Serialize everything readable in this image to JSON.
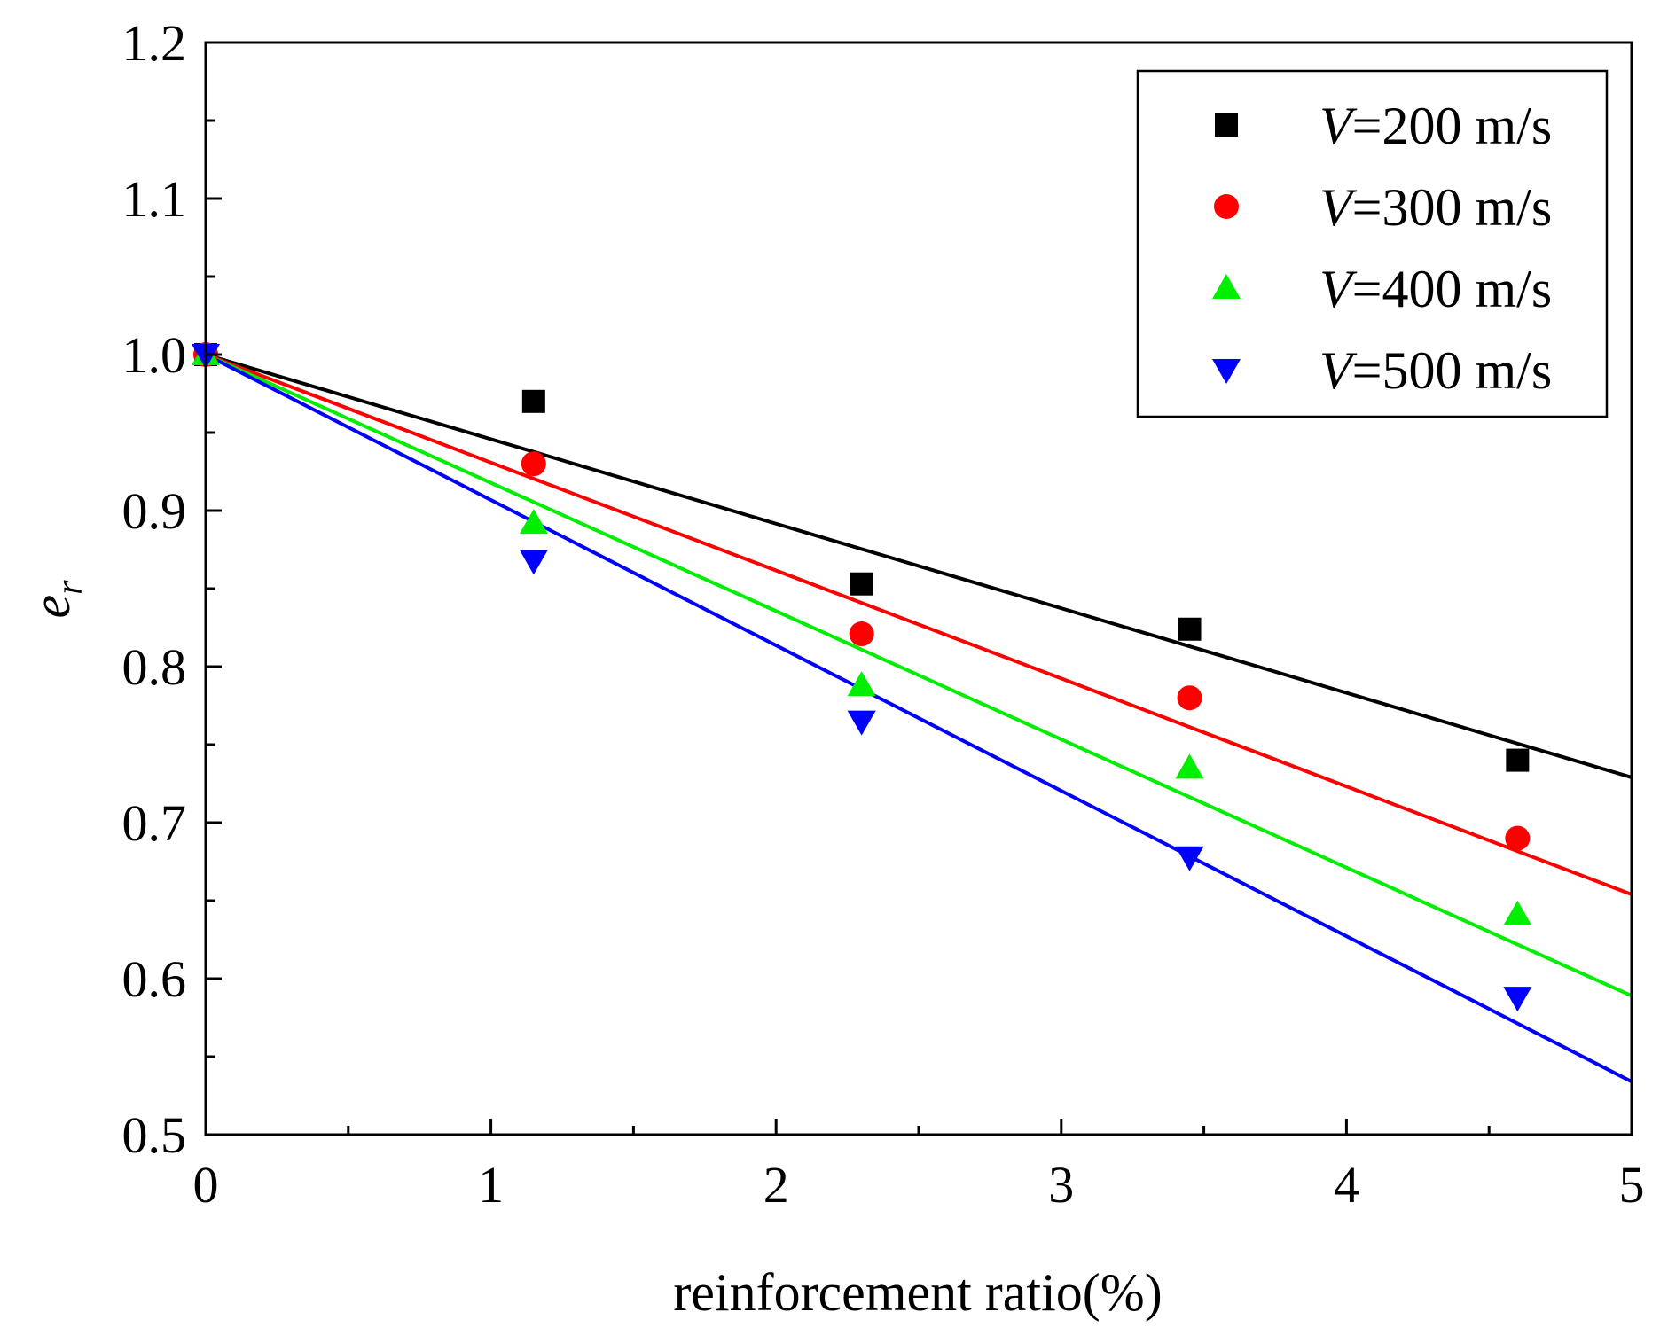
{
  "chart_data": {
    "type": "scatter",
    "title": "",
    "xlabel": "reinforcement ratio(%)",
    "ylabel_main": "e",
    "ylabel_sub": "r",
    "xlim": [
      0,
      5
    ],
    "ylim": [
      0.5,
      1.2
    ],
    "xticks": [
      0,
      1,
      2,
      3,
      4,
      5
    ],
    "xtick_labels": [
      "0",
      "1",
      "2",
      "3",
      "4",
      "5"
    ],
    "yticks": [
      0.5,
      0.6,
      0.7,
      0.8,
      0.9,
      1.0,
      1.1,
      1.2
    ],
    "ytick_labels": [
      "0.5",
      "0.6",
      "0.7",
      "0.8",
      "0.9",
      "1.0",
      "1.1",
      "1.2"
    ],
    "x": [
      0,
      1.15,
      2.3,
      3.45,
      4.6
    ],
    "legend_position": "top-right",
    "series": [
      {
        "name": "V=200 m/s",
        "italic_prefix": "V",
        "suffix": "=200 m/s",
        "color": "#000000",
        "marker": "square",
        "values": [
          1.0,
          0.97,
          0.853,
          0.824,
          0.74
        ],
        "fit": {
          "x": [
            0,
            5
          ],
          "y": [
            1.0,
            0.729
          ]
        }
      },
      {
        "name": "V=300 m/s",
        "italic_prefix": "V",
        "suffix": "=300 m/s",
        "color": "#ff0000",
        "marker": "circle",
        "values": [
          1.0,
          0.93,
          0.821,
          0.78,
          0.69
        ],
        "fit": {
          "x": [
            0,
            5
          ],
          "y": [
            1.0,
            0.654
          ]
        }
      },
      {
        "name": "V=400 m/s",
        "italic_prefix": "V",
        "suffix": "=400 m/s",
        "color": "#00ee00",
        "marker": "triangle-up",
        "values": [
          1.0,
          0.892,
          0.788,
          0.735,
          0.641
        ],
        "fit": {
          "x": [
            0,
            5
          ],
          "y": [
            1.0,
            0.589
          ]
        }
      },
      {
        "name": "V=500 m/s",
        "italic_prefix": "V",
        "suffix": "=500 m/s",
        "color": "#0000ff",
        "marker": "triangle-down",
        "values": [
          1.0,
          0.868,
          0.765,
          0.678,
          0.588
        ],
        "fit": {
          "x": [
            0,
            5
          ],
          "y": [
            1.0,
            0.534
          ]
        }
      }
    ]
  }
}
